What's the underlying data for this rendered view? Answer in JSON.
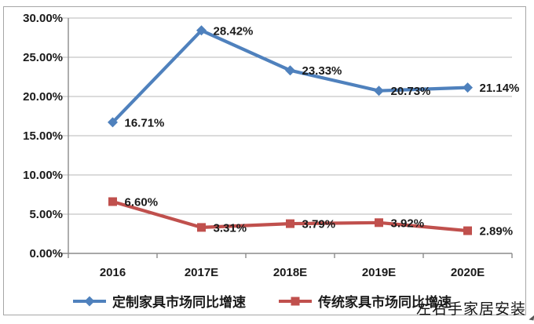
{
  "chart_data": {
    "type": "line",
    "categories": [
      "2016",
      "2017E",
      "2018E",
      "2019E",
      "2020E"
    ],
    "series": [
      {
        "name": "定制家具市场同比增速",
        "color": "#4F81BD",
        "marker": "diamond",
        "values": [
          16.71,
          28.42,
          23.33,
          20.73,
          21.14
        ],
        "labels": [
          "16.71%",
          "28.42%",
          "23.33%",
          "20.73%",
          "21.14%"
        ]
      },
      {
        "name": "传统家具市场同比增速",
        "color": "#C0504D",
        "marker": "square",
        "values": [
          6.6,
          3.31,
          3.79,
          3.92,
          2.89
        ],
        "labels": [
          "6.60%",
          "3.31%",
          "3.79%",
          "3.92%",
          "2.89%"
        ]
      }
    ],
    "title": "",
    "xlabel": "",
    "ylabel": "",
    "ylim": [
      0,
      30
    ],
    "yticks": {
      "values": [
        0,
        5,
        10,
        15,
        20,
        25,
        30
      ],
      "labels": [
        "0.00%",
        "5.00%",
        "10.00%",
        "15.00%",
        "20.00%",
        "25.00%",
        "30.00%"
      ]
    },
    "grid": true,
    "legend_position": "bottom"
  },
  "legend": {
    "series1_label": "定制家具市场同比增速",
    "series2_label": "传统家具市场同比增速"
  },
  "watermark_text": "左右手家居安装",
  "colors": {
    "series1": "#4F81BD",
    "series2": "#C0504D",
    "gridline": "#b7b7b7",
    "axis": "#8c8c8c",
    "text": "#1a1a1a",
    "frame_border": "#a6a6a6"
  }
}
